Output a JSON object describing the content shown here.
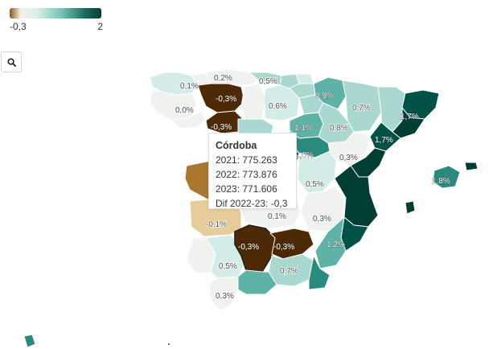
{
  "legend": {
    "min_label": "-0,3",
    "max_label": "2"
  },
  "search": {
    "icon": "search-icon"
  },
  "colors": {
    "strong_neg": "#4d2a05",
    "neg": "#a9772d",
    "light_neg": "#e5cc98",
    "zero": "#f0f2ef",
    "light_pos": "#d4ece7",
    "mid_pos": "#a8d8cf",
    "pos": "#5fb2a6",
    "strong_pos": "#2b8a7e",
    "very_strong_pos": "#005246",
    "max_pos": "#003d33"
  },
  "regions": [
    {
      "id": "galicia-north",
      "label": "0,1%",
      "value": 0.1
    },
    {
      "id": "galicia-west",
      "label": "0,0%",
      "value": 0.0
    },
    {
      "id": "asturias",
      "label": "0,2%",
      "value": 0.2
    },
    {
      "id": "leon",
      "label": "-0,3%",
      "value": -0.3
    },
    {
      "id": "zamora",
      "label": "-0,3%",
      "value": -0.3
    },
    {
      "id": "cantabria",
      "label": "0,5%",
      "value": 0.5
    },
    {
      "id": "burgos",
      "label": "0,6%",
      "value": 0.6
    },
    {
      "id": "navarra",
      "label": "0,9%",
      "value": 0.9
    },
    {
      "id": "huesca",
      "label": "0,7%",
      "value": 0.7
    },
    {
      "id": "girona",
      "label": "1,7%",
      "value": 1.7
    },
    {
      "id": "tarragona",
      "label": "1,7%",
      "value": 1.7
    },
    {
      "id": "soria",
      "label": "1,1%",
      "value": 1.1
    },
    {
      "id": "zaragoza",
      "label": "0,8%",
      "value": 0.8
    },
    {
      "id": "madrid",
      "label": "2,0%",
      "value": 2.0
    },
    {
      "id": "teruel",
      "label": "0,3%",
      "value": 0.3
    },
    {
      "id": "cuenca",
      "label": "0,5%",
      "value": 0.5
    },
    {
      "id": "baleares",
      "label": "1,8%",
      "value": 1.8
    },
    {
      "id": "badajoz",
      "label": "-0,1%",
      "value": -0.1
    },
    {
      "id": "ciudad-real",
      "label": "0,1%",
      "value": 0.1
    },
    {
      "id": "albacete",
      "label": "0,3%",
      "value": 0.3
    },
    {
      "id": "cordoba",
      "label": "-0,3%",
      "value": -0.3
    },
    {
      "id": "jaen",
      "label": "-0,3%",
      "value": -0.3
    },
    {
      "id": "murcia",
      "label": "1,2%",
      "value": 1.2
    },
    {
      "id": "sevilla",
      "label": "0,5%",
      "value": 0.5
    },
    {
      "id": "granada",
      "label": "0,7%",
      "value": 0.7
    },
    {
      "id": "cadiz",
      "label": "0,3%",
      "value": 0.3
    }
  ],
  "tooltip": {
    "title": "Córdoba",
    "line_2021": "2021: 775.263",
    "line_2022": "2022: 773.876",
    "line_2023": "2023: 771.606",
    "line_diff": "Dif 2022-23: -0,3"
  }
}
